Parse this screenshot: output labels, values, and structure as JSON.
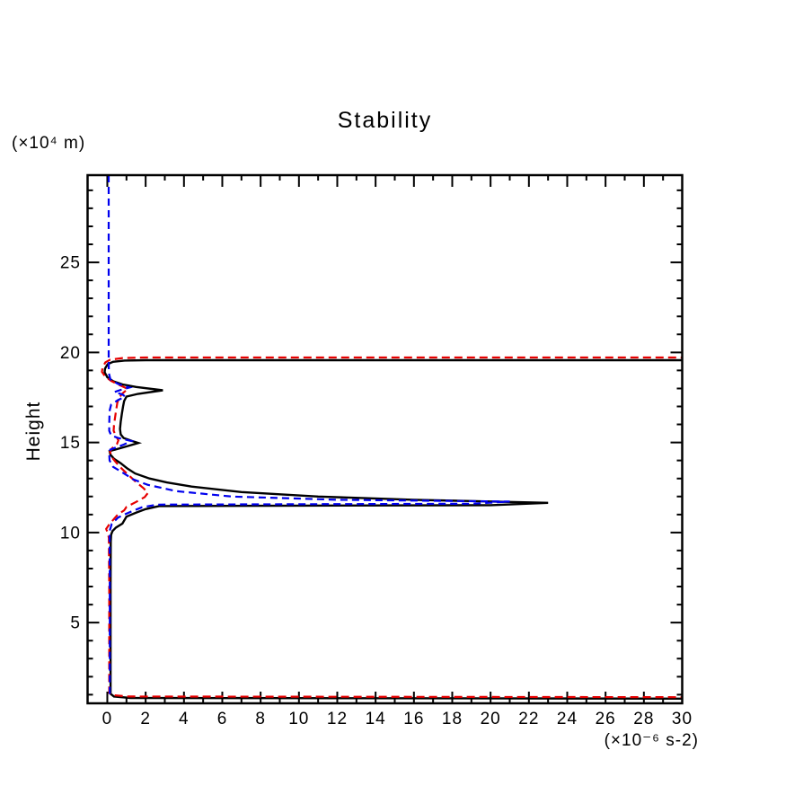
{
  "chart_data": {
    "type": "line",
    "title": "Stability",
    "ylabel": "Height",
    "y_unit": "(×10⁴ m)",
    "x_unit": "(×10⁻⁶ s-2)",
    "x_range": [
      -1.03,
      30
    ],
    "y_range": [
      0.52,
      29.84
    ],
    "x_tick_label_values": [
      0,
      2,
      4,
      6,
      8,
      10,
      12,
      14,
      16,
      18,
      20,
      22,
      24,
      26,
      28,
      30
    ],
    "y_tick_label_values": [
      25,
      20,
      15,
      10,
      5
    ],
    "x_minor_step": 1,
    "x_major_step": 2,
    "y_minor_step": 1,
    "y_major_step": 5,
    "axis_color": "#000000",
    "grid": false,
    "legend": "none",
    "series": [
      {
        "name": "black-solid",
        "color": "#000000",
        "dash": null,
        "width": 2.4,
        "points": [
          [
            31,
            19.57
          ],
          [
            2.0,
            19.57
          ],
          [
            0.9,
            19.55
          ],
          [
            0.3,
            19.48
          ],
          [
            0.02,
            19.35
          ],
          [
            -0.12,
            19.1
          ],
          [
            -0.14,
            18.9
          ],
          [
            0.0,
            18.62
          ],
          [
            0.3,
            18.4
          ],
          [
            0.8,
            18.22
          ],
          [
            1.5,
            18.08
          ],
          [
            2.9,
            17.9
          ],
          [
            1.6,
            17.7
          ],
          [
            1.0,
            17.55
          ],
          [
            0.88,
            17.3
          ],
          [
            0.82,
            17.0
          ],
          [
            0.76,
            16.6
          ],
          [
            0.7,
            16.15
          ],
          [
            0.66,
            15.75
          ],
          [
            0.7,
            15.45
          ],
          [
            0.85,
            15.25
          ],
          [
            1.3,
            15.08
          ],
          [
            1.62,
            14.97
          ],
          [
            0.9,
            14.75
          ],
          [
            0.12,
            14.52
          ],
          [
            0.16,
            14.32
          ],
          [
            0.35,
            14.1
          ],
          [
            0.7,
            13.85
          ],
          [
            1.05,
            13.55
          ],
          [
            1.45,
            13.28
          ],
          [
            2.2,
            13.0
          ],
          [
            3.1,
            12.78
          ],
          [
            4.4,
            12.55
          ],
          [
            7.0,
            12.25
          ],
          [
            11.0,
            12.0
          ],
          [
            16.0,
            11.82
          ],
          [
            23.0,
            11.65
          ],
          [
            20.0,
            11.52
          ],
          [
            2.7,
            11.47
          ],
          [
            2.0,
            11.3
          ],
          [
            1.5,
            11.1
          ],
          [
            1.0,
            10.88
          ],
          [
            0.79,
            10.5
          ],
          [
            0.45,
            10.28
          ],
          [
            0.27,
            10.08
          ],
          [
            0.2,
            9.88
          ],
          [
            0.18,
            9.5
          ],
          [
            0.17,
            7.0
          ],
          [
            0.17,
            4.0
          ],
          [
            0.17,
            1.05
          ],
          [
            0.35,
            0.9
          ],
          [
            1.2,
            0.82
          ],
          [
            31,
            0.78
          ]
        ]
      },
      {
        "name": "red-dashed",
        "color": "#e60000",
        "dash": "9 5",
        "width": 2.2,
        "points": [
          [
            31,
            19.72
          ],
          [
            2.0,
            19.72
          ],
          [
            0.8,
            19.69
          ],
          [
            0.15,
            19.6
          ],
          [
            -0.1,
            19.45
          ],
          [
            -0.25,
            19.15
          ],
          [
            -0.28,
            18.92
          ],
          [
            -0.1,
            18.65
          ],
          [
            0.2,
            18.42
          ],
          [
            0.6,
            18.2
          ],
          [
            1.07,
            17.97
          ],
          [
            0.8,
            17.73
          ],
          [
            0.62,
            17.5
          ],
          [
            0.52,
            17.2
          ],
          [
            0.46,
            16.8
          ],
          [
            0.4,
            16.35
          ],
          [
            0.35,
            15.95
          ],
          [
            0.33,
            15.65
          ],
          [
            0.45,
            15.35
          ],
          [
            0.58,
            15.12
          ],
          [
            0.5,
            14.9
          ],
          [
            0.25,
            14.68
          ],
          [
            0.14,
            14.5
          ],
          [
            0.22,
            14.2
          ],
          [
            0.45,
            13.9
          ],
          [
            0.75,
            13.55
          ],
          [
            1.1,
            13.2
          ],
          [
            1.5,
            12.8
          ],
          [
            1.9,
            12.45
          ],
          [
            2.12,
            12.2
          ],
          [
            1.95,
            11.97
          ],
          [
            1.5,
            11.7
          ],
          [
            1.0,
            11.42
          ],
          [
            0.88,
            11.23
          ],
          [
            0.55,
            11.0
          ],
          [
            0.33,
            10.73
          ],
          [
            0.1,
            10.45
          ],
          [
            -0.06,
            10.2
          ],
          [
            0.02,
            10.0
          ],
          [
            0.08,
            9.7
          ],
          [
            0.1,
            7.0
          ],
          [
            0.1,
            3.0
          ],
          [
            0.1,
            1.1
          ],
          [
            0.25,
            0.98
          ],
          [
            1.1,
            0.9
          ],
          [
            31,
            0.86
          ]
        ]
      },
      {
        "name": "blue-dashed",
        "color": "#0000ee",
        "dash": "8 5",
        "width": 2.2,
        "points": [
          [
            0.07,
            29.84
          ],
          [
            0.07,
            26.0
          ],
          [
            0.07,
            22.0
          ],
          [
            0.07,
            19.4
          ],
          [
            0.08,
            18.85
          ],
          [
            0.16,
            18.5
          ],
          [
            0.55,
            18.25
          ],
          [
            1.16,
            18.05
          ],
          [
            0.7,
            17.92
          ],
          [
            0.37,
            17.8
          ],
          [
            0.8,
            17.66
          ],
          [
            0.93,
            17.55
          ],
          [
            0.55,
            17.35
          ],
          [
            0.2,
            17.1
          ],
          [
            0.13,
            16.8
          ],
          [
            0.11,
            16.4
          ],
          [
            0.1,
            16.0
          ],
          [
            0.1,
            15.65
          ],
          [
            0.2,
            15.4
          ],
          [
            0.56,
            15.25
          ],
          [
            1.26,
            15.08
          ],
          [
            0.85,
            14.88
          ],
          [
            0.15,
            14.6
          ],
          [
            0.1,
            14.35
          ],
          [
            0.12,
            14.0
          ],
          [
            0.3,
            13.65
          ],
          [
            0.84,
            13.3
          ],
          [
            1.35,
            12.95
          ],
          [
            2.1,
            12.65
          ],
          [
            3.6,
            12.3
          ],
          [
            6.5,
            12.0
          ],
          [
            12.0,
            11.82
          ],
          [
            21.0,
            11.72
          ],
          [
            19.0,
            11.6
          ],
          [
            2.6,
            11.55
          ],
          [
            1.8,
            11.4
          ],
          [
            1.17,
            11.13
          ],
          [
            0.56,
            10.83
          ],
          [
            0.23,
            10.48
          ],
          [
            0.12,
            10.08
          ],
          [
            0.12,
            9.6
          ],
          [
            0.13,
            7.0
          ],
          [
            0.13,
            4.0
          ],
          [
            0.13,
            0.85
          ]
        ]
      }
    ]
  }
}
